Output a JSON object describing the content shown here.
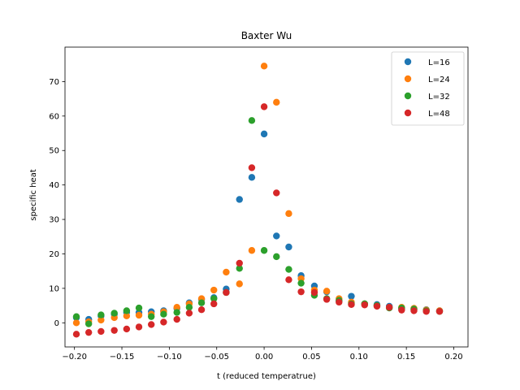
{
  "chart_data": {
    "type": "scatter",
    "title": "Baxter Wu",
    "xlabel": "t (reduced temperatrue)",
    "ylabel": "specific heat",
    "xlim": [
      -0.21,
      0.215
    ],
    "ylim": [
      -7,
      80
    ],
    "xticks": [
      -0.2,
      -0.15,
      -0.1,
      -0.05,
      0.0,
      0.05,
      0.1,
      0.15,
      0.2
    ],
    "xtick_labels": [
      "−0.20",
      "−0.15",
      "−0.10",
      "−0.05",
      "0.00",
      "0.05",
      "0.10",
      "0.15",
      "0.20"
    ],
    "yticks": [
      0,
      10,
      20,
      30,
      40,
      50,
      60,
      70
    ],
    "ytick_labels": [
      "0",
      "10",
      "20",
      "30",
      "40",
      "50",
      "60",
      "70"
    ],
    "grid": false,
    "legend_position": "top-right",
    "series": [
      {
        "name": "L=16",
        "color": "#1f77b4",
        "points": [
          [
            -0.198,
            1.5
          ],
          [
            -0.185,
            1.0
          ],
          [
            -0.172,
            2.0
          ],
          [
            -0.158,
            2.5
          ],
          [
            -0.145,
            3.0
          ],
          [
            -0.132,
            3.0
          ],
          [
            -0.119,
            3.2
          ],
          [
            -0.106,
            3.5
          ],
          [
            -0.092,
            4.2
          ],
          [
            -0.079,
            5.8
          ],
          [
            -0.066,
            6.8
          ],
          [
            -0.053,
            7.3
          ],
          [
            -0.04,
            9.8
          ],
          [
            -0.026,
            35.8
          ],
          [
            -0.013,
            42.2
          ],
          [
            0.0,
            54.8
          ],
          [
            0.013,
            25.2
          ],
          [
            0.026,
            22.0
          ],
          [
            0.039,
            13.7
          ],
          [
            0.053,
            10.7
          ],
          [
            0.066,
            9.0
          ],
          [
            0.079,
            6.3
          ],
          [
            0.092,
            7.7
          ],
          [
            0.106,
            5.5
          ],
          [
            0.119,
            5.3
          ],
          [
            0.132,
            4.8
          ],
          [
            0.145,
            4.2
          ],
          [
            0.158,
            4.0
          ],
          [
            0.171,
            3.8
          ],
          [
            0.185,
            3.5
          ]
        ]
      },
      {
        "name": "L=24",
        "color": "#ff7f0e",
        "points": [
          [
            -0.198,
            0.0
          ],
          [
            -0.185,
            0.3
          ],
          [
            -0.172,
            0.8
          ],
          [
            -0.158,
            1.5
          ],
          [
            -0.145,
            2.0
          ],
          [
            -0.132,
            2.2
          ],
          [
            -0.119,
            2.5
          ],
          [
            -0.106,
            3.2
          ],
          [
            -0.092,
            4.5
          ],
          [
            -0.079,
            5.5
          ],
          [
            -0.066,
            7.0
          ],
          [
            -0.053,
            9.5
          ],
          [
            -0.04,
            14.7
          ],
          [
            -0.026,
            11.3
          ],
          [
            -0.013,
            21.0
          ],
          [
            0.0,
            74.5
          ],
          [
            0.013,
            64.0
          ],
          [
            0.026,
            31.7
          ],
          [
            0.039,
            12.8
          ],
          [
            0.053,
            9.5
          ],
          [
            0.066,
            9.2
          ],
          [
            0.079,
            7.0
          ],
          [
            0.092,
            6.0
          ],
          [
            0.106,
            5.5
          ],
          [
            0.119,
            5.0
          ],
          [
            0.132,
            4.5
          ],
          [
            0.145,
            4.5
          ],
          [
            0.158,
            4.2
          ],
          [
            0.171,
            3.7
          ],
          [
            0.185,
            3.5
          ]
        ]
      },
      {
        "name": "L=32",
        "color": "#2ca02c",
        "points": [
          [
            -0.198,
            1.8
          ],
          [
            -0.185,
            -0.3
          ],
          [
            -0.172,
            2.3
          ],
          [
            -0.158,
            2.8
          ],
          [
            -0.145,
            3.5
          ],
          [
            -0.132,
            4.3
          ],
          [
            -0.119,
            1.8
          ],
          [
            -0.106,
            2.5
          ],
          [
            -0.092,
            3.0
          ],
          [
            -0.079,
            4.5
          ],
          [
            -0.066,
            5.8
          ],
          [
            -0.053,
            7.0
          ],
          [
            -0.04,
            8.8
          ],
          [
            -0.026,
            15.8
          ],
          [
            -0.013,
            58.7
          ],
          [
            0.0,
            21.0
          ],
          [
            0.013,
            19.2
          ],
          [
            0.026,
            15.5
          ],
          [
            0.039,
            11.5
          ],
          [
            0.053,
            8.0
          ],
          [
            0.066,
            7.0
          ],
          [
            0.079,
            6.5
          ],
          [
            0.092,
            5.5
          ],
          [
            0.106,
            5.5
          ],
          [
            0.119,
            5.0
          ],
          [
            0.132,
            4.3
          ],
          [
            0.145,
            4.3
          ],
          [
            0.158,
            4.0
          ],
          [
            0.171,
            3.5
          ],
          [
            0.185,
            3.3
          ]
        ]
      },
      {
        "name": "L=48",
        "color": "#d62728",
        "points": [
          [
            -0.198,
            -3.3
          ],
          [
            -0.185,
            -2.8
          ],
          [
            -0.172,
            -2.5
          ],
          [
            -0.158,
            -2.2
          ],
          [
            -0.145,
            -1.8
          ],
          [
            -0.132,
            -1.2
          ],
          [
            -0.119,
            -0.5
          ],
          [
            -0.106,
            0.2
          ],
          [
            -0.092,
            1.0
          ],
          [
            -0.079,
            2.8
          ],
          [
            -0.066,
            3.8
          ],
          [
            -0.053,
            5.5
          ],
          [
            -0.04,
            8.8
          ],
          [
            -0.026,
            17.3
          ],
          [
            -0.013,
            45.0
          ],
          [
            0.0,
            62.7
          ],
          [
            0.013,
            37.7
          ],
          [
            0.026,
            12.5
          ],
          [
            0.039,
            9.0
          ],
          [
            0.053,
            8.8
          ],
          [
            0.066,
            6.8
          ],
          [
            0.079,
            6.0
          ],
          [
            0.092,
            5.3
          ],
          [
            0.106,
            5.2
          ],
          [
            0.119,
            4.8
          ],
          [
            0.132,
            4.5
          ],
          [
            0.145,
            3.7
          ],
          [
            0.158,
            3.5
          ],
          [
            0.171,
            3.3
          ],
          [
            0.185,
            3.3
          ]
        ]
      }
    ]
  }
}
